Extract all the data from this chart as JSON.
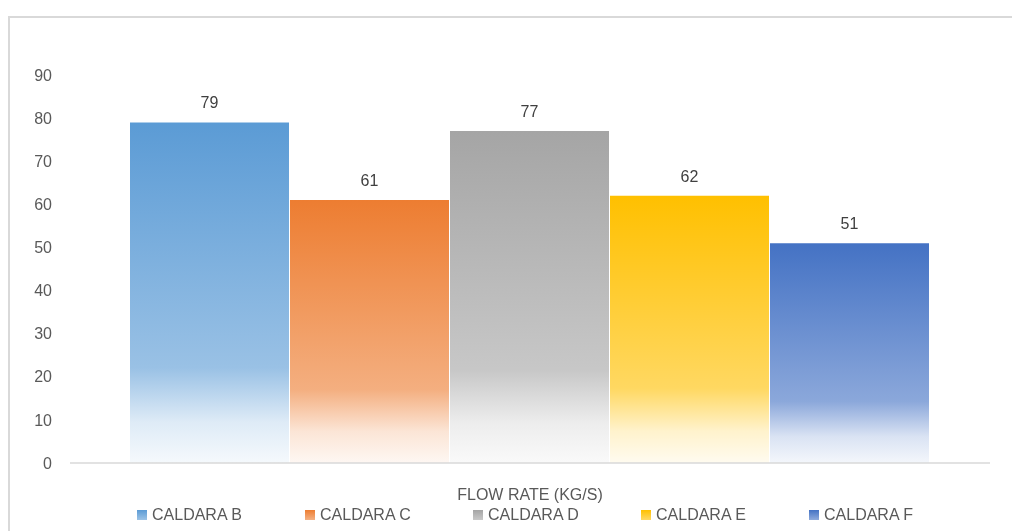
{
  "chart_data": {
    "type": "bar",
    "categories": [
      null
    ],
    "xlabel": "FLOW RATE (KG/S)",
    "series": [
      {
        "name": "CALDARA B",
        "color": "#5b9bd5",
        "values": [
          79
        ]
      },
      {
        "name": "CALDARA C",
        "color": "#ed7d31",
        "values": [
          61
        ]
      },
      {
        "name": "CALDARA D",
        "color": "#a5a5a5",
        "values": [
          77
        ]
      },
      {
        "name": "CALDARA E",
        "color": "#ffc000",
        "values": [
          62
        ]
      },
      {
        "name": "CALDARA F",
        "color": "#4472c4",
        "values": [
          51
        ]
      }
    ],
    "ylim": [
      0,
      90
    ],
    "yticks": [
      0,
      10,
      20,
      30,
      40,
      50,
      60,
      70,
      80,
      90
    ],
    "legend": "bottom",
    "data_labels": true
  }
}
